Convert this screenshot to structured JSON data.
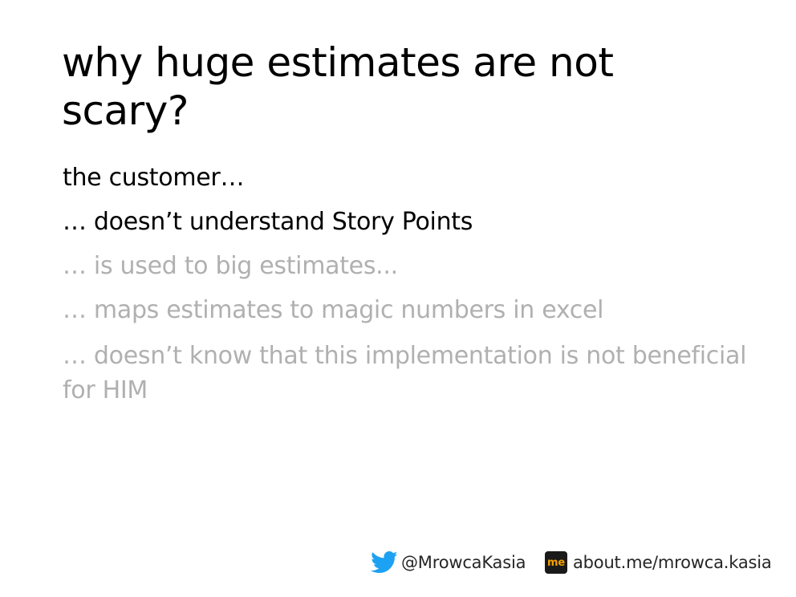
{
  "slide": {
    "title": "why huge estimates are not scary?",
    "bullets": [
      {
        "text": "the customer…",
        "state": "active"
      },
      {
        "text": "… doesn’t understand Story Points",
        "state": "active"
      },
      {
        "text": "… is used to big estimates...",
        "state": "dim"
      },
      {
        "text": "… maps estimates to magic numbers in excel",
        "state": "dim"
      },
      {
        "text": "… doesn’t know that this implementation is not beneficial for HIM",
        "state": "dim"
      }
    ]
  },
  "footer": {
    "twitter_handle": "@MrowcaKasia",
    "aboutme_badge": "me",
    "aboutme_url": "about.me/mrowca.kasia",
    "icons": {
      "twitter": "twitter-bird-icon",
      "aboutme": "aboutme-logo-icon"
    }
  },
  "colors": {
    "text_active": "#000000",
    "text_dim": "#b0b0b0",
    "twitter_blue": "#1da1f2",
    "aboutme_bg": "#1a1a1a",
    "aboutme_fg": "#f5a100"
  }
}
